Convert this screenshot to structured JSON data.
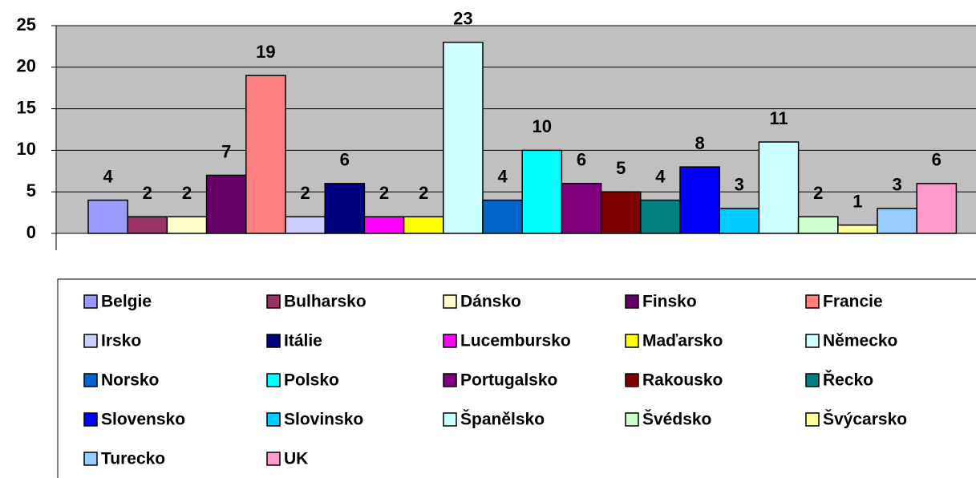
{
  "chart_data": {
    "type": "bar",
    "categories": [
      "Belgie",
      "Bulharsko",
      "Dánsko",
      "Finsko",
      "Francie",
      "Irsko",
      "Itálie",
      "Lucembursko",
      "Maďarsko",
      "Německo",
      "Norsko",
      "Polsko",
      "Portugalsko",
      "Rakousko",
      "Řecko",
      "Slovensko",
      "Slovinsko",
      "Španělsko",
      "Švédsko",
      "Švýcarsko",
      "Turecko",
      "UK"
    ],
    "values": [
      4,
      2,
      2,
      7,
      19,
      2,
      6,
      2,
      2,
      23,
      4,
      10,
      6,
      5,
      4,
      8,
      3,
      11,
      2,
      1,
      3,
      6
    ],
    "colors": [
      "#9999ff",
      "#993366",
      "#ffffcc",
      "#660066",
      "#ff8080",
      "#ccccff",
      "#000080",
      "#ff00ff",
      "#ffff00",
      "#ccffff",
      "#0066cc",
      "#00ffff",
      "#800080",
      "#800000",
      "#008080",
      "#0000ff",
      "#00ccff",
      "#ccffff",
      "#ccffcc",
      "#ffff99",
      "#99ccff",
      "#ff99cc"
    ],
    "ylim": [
      0,
      25
    ],
    "yticks": [
      0,
      5,
      10,
      15,
      20,
      25
    ],
    "grid": true,
    "legend": "bottom"
  }
}
